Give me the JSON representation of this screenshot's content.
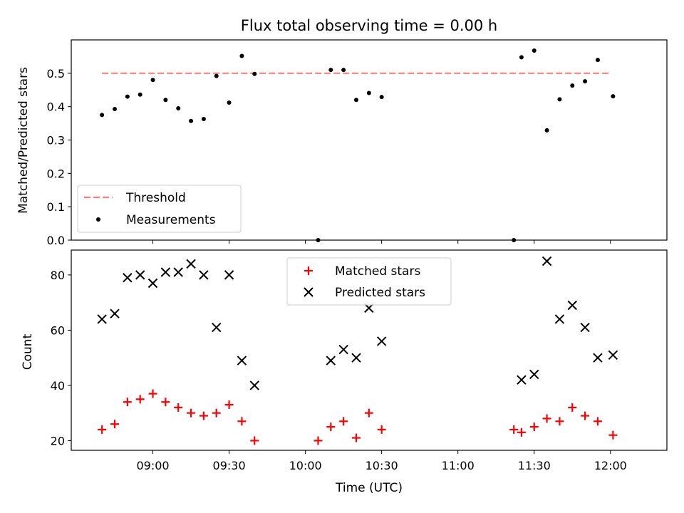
{
  "chart_data": [
    {
      "type": "scatter",
      "title": "Flux total observing time = 0.00 h",
      "xlabel": "",
      "ylabel": "Matched/Predicted stars",
      "ylim": [
        0,
        0.6
      ],
      "yticks": [
        "0.0",
        "0.1",
        "0.2",
        "0.3",
        "0.4",
        "0.5"
      ],
      "grid": false,
      "legend_position": "lower-left",
      "series": [
        {
          "name": "Threshold",
          "style": "dashed-line",
          "color": "#ff7f7f",
          "x": [
            "08:40",
            "12:00"
          ],
          "y": [
            0.5,
            0.5
          ]
        },
        {
          "name": "Measurements",
          "style": "dot",
          "color": "#000000",
          "x": [
            "08:40",
            "08:45",
            "08:50",
            "08:55",
            "09:00",
            "09:05",
            "09:10",
            "09:15",
            "09:20",
            "09:25",
            "09:30",
            "09:35",
            "09:40",
            "10:05",
            "10:10",
            "10:15",
            "10:20",
            "10:25",
            "10:30",
            "11:22",
            "11:25",
            "11:30",
            "11:35",
            "11:40",
            "11:45",
            "11:50",
            "11:55",
            "12:01"
          ],
          "y": [
            0.375,
            0.393,
            0.43,
            0.436,
            0.48,
            0.42,
            0.395,
            0.357,
            0.363,
            0.492,
            0.412,
            0.552,
            0.498,
            0.0,
            0.51,
            0.51,
            0.42,
            0.441,
            0.429,
            0.0,
            0.548,
            0.568,
            0.329,
            0.422,
            0.463,
            0.476,
            0.54,
            0.431
          ]
        }
      ]
    },
    {
      "type": "scatter",
      "title": "",
      "xlabel": "Time (UTC)",
      "ylabel": "Count",
      "ylim": [
        16.5,
        89
      ],
      "yticks": [
        "20",
        "40",
        "60",
        "80"
      ],
      "xticks": [
        "09:00",
        "09:30",
        "10:00",
        "10:30",
        "11:00",
        "11:30",
        "12:00"
      ],
      "grid": false,
      "legend_position": "top-center",
      "series": [
        {
          "name": "Matched stars",
          "style": "plus",
          "color": "#ff0000",
          "x": [
            "08:40",
            "08:45",
            "08:50",
            "08:55",
            "09:00",
            "09:05",
            "09:10",
            "09:15",
            "09:20",
            "09:25",
            "09:30",
            "09:35",
            "09:40",
            "10:05",
            "10:10",
            "10:15",
            "10:20",
            "10:25",
            "10:30",
            "11:22",
            "11:25",
            "11:30",
            "11:35",
            "11:40",
            "11:45",
            "11:50",
            "11:55",
            "12:01"
          ],
          "y": [
            24,
            26,
            34,
            35,
            37,
            34,
            32,
            30,
            29,
            30,
            33,
            27,
            20,
            20,
            25,
            27,
            21,
            30,
            24,
            24,
            23,
            25,
            28,
            27,
            32,
            29,
            27,
            22
          ]
        },
        {
          "name": "Predicted stars",
          "style": "x",
          "color": "#000000",
          "x": [
            "08:40",
            "08:45",
            "08:50",
            "08:55",
            "09:00",
            "09:05",
            "09:10",
            "09:15",
            "09:20",
            "09:25",
            "09:30",
            "09:35",
            "09:40",
            "10:10",
            "10:15",
            "10:20",
            "10:25",
            "10:30",
            "11:25",
            "11:30",
            "11:35",
            "11:40",
            "11:45",
            "11:50",
            "11:55",
            "12:01"
          ],
          "y": [
            64,
            66,
            79,
            80,
            77,
            81,
            81,
            84,
            80,
            61,
            80,
            49,
            40,
            49,
            53,
            50,
            68,
            56,
            42,
            44,
            85,
            64,
            69,
            61,
            50,
            51
          ]
        }
      ]
    }
  ]
}
